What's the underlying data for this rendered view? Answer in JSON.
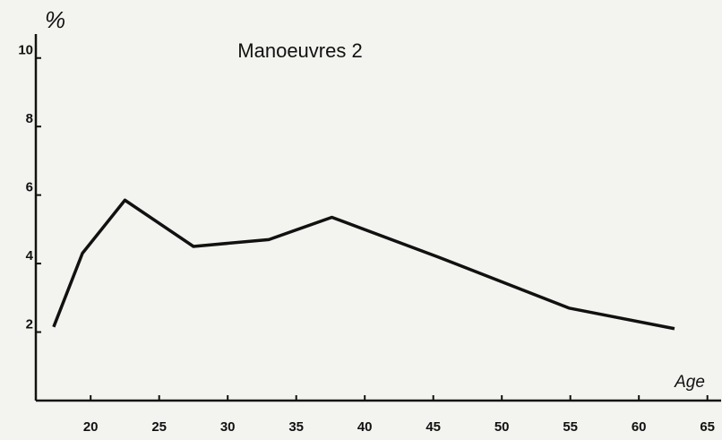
{
  "chart_data": {
    "type": "line",
    "title": "Manoeuvres 2",
    "y_label": "%",
    "x_label": "Age",
    "x": [
      17.3,
      19.4,
      22.5,
      27.5,
      33,
      37.6,
      45.3,
      54.9,
      62.6
    ],
    "series": [
      {
        "color": "#111111",
        "values": [
          2.15,
          4.3,
          5.85,
          4.5,
          4.7,
          5.35,
          4.2,
          2.7,
          2.1
        ]
      }
    ],
    "xlim": [
      16,
      66
    ],
    "xticks": [
      20,
      25,
      30,
      35,
      40,
      45,
      50,
      55,
      60,
      65
    ],
    "ylim": [
      0,
      10.7
    ],
    "yticks": [
      2,
      4,
      6,
      8,
      10
    ]
  }
}
